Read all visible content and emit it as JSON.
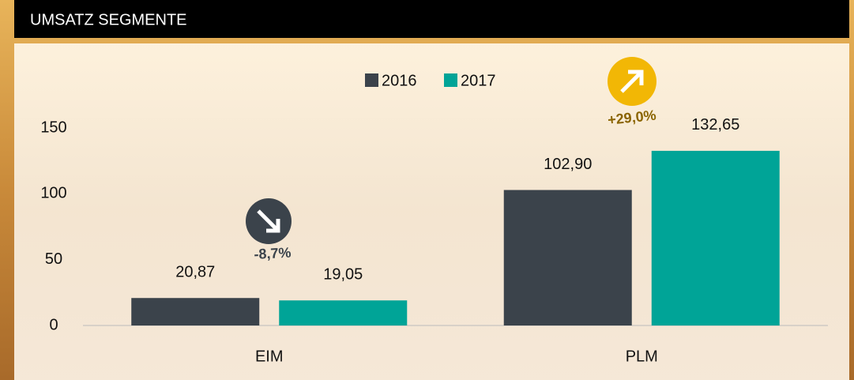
{
  "chart_data": {
    "type": "bar",
    "title": "UMSATZ SEGMENTE",
    "categories": [
      "EIM",
      "PLM"
    ],
    "series": [
      {
        "name": "2016",
        "color": "#3b434b",
        "values": [
          20.87,
          102.9
        ],
        "value_labels": [
          "20,87",
          "102,90"
        ]
      },
      {
        "name": "2017",
        "color": "#00a497",
        "values": [
          19.05,
          132.65
        ],
        "value_labels": [
          "19,05",
          "132,65"
        ]
      }
    ],
    "ylim": [
      0,
      150
    ],
    "yticks": [
      0,
      50,
      100,
      150
    ],
    "grid": false,
    "legend": "top",
    "annotations": [
      {
        "text": "-8,7%",
        "category": "EIM"
      },
      {
        "text": "+29,0%",
        "category": "PLM"
      }
    ]
  }
}
